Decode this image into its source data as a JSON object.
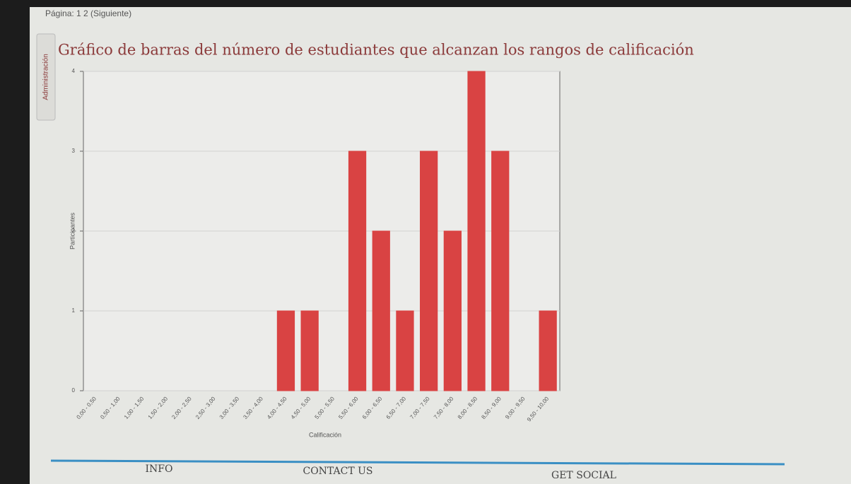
{
  "pagination": "Página: 1 2 (Siguiente)",
  "sidebar_tab": "Administración",
  "footer": {
    "links": [
      "INFO",
      "CONTACT US",
      "GET SOCIAL"
    ]
  },
  "chart_data": {
    "type": "bar",
    "title": "Gráfico de barras del número de estudiantes que alcanzan los rangos de calificación",
    "x_label": "Calificación",
    "y_label": "Participantes",
    "categories": [
      "0,00 - 0,50",
      "0,50 - 1,00",
      "1,00 - 1,50",
      "1,50 - 2,00",
      "2,00 - 2,50",
      "2,50 - 3,00",
      "3,00 - 3,50",
      "3,50 - 4,00",
      "4,00 - 4,50",
      "4,50 - 5,00",
      "5,00 - 5,50",
      "5,50 - 6,00",
      "6,00 - 6,50",
      "6,50 - 7,00",
      "7,00 - 7,50",
      "7,50 - 8,00",
      "8,00 - 8,50",
      "8,50 - 9,00",
      "9,00 - 9,50",
      "9,50 - 10,00"
    ],
    "values": [
      0,
      0,
      0,
      0,
      0,
      0,
      0,
      0,
      1,
      1,
      0,
      3,
      2,
      1,
      3,
      2,
      4,
      3,
      0,
      1
    ],
    "color": "#d94343",
    "ylim": [
      0,
      4
    ],
    "yticks": [
      0,
      1,
      2,
      3,
      4
    ],
    "grid": true
  }
}
